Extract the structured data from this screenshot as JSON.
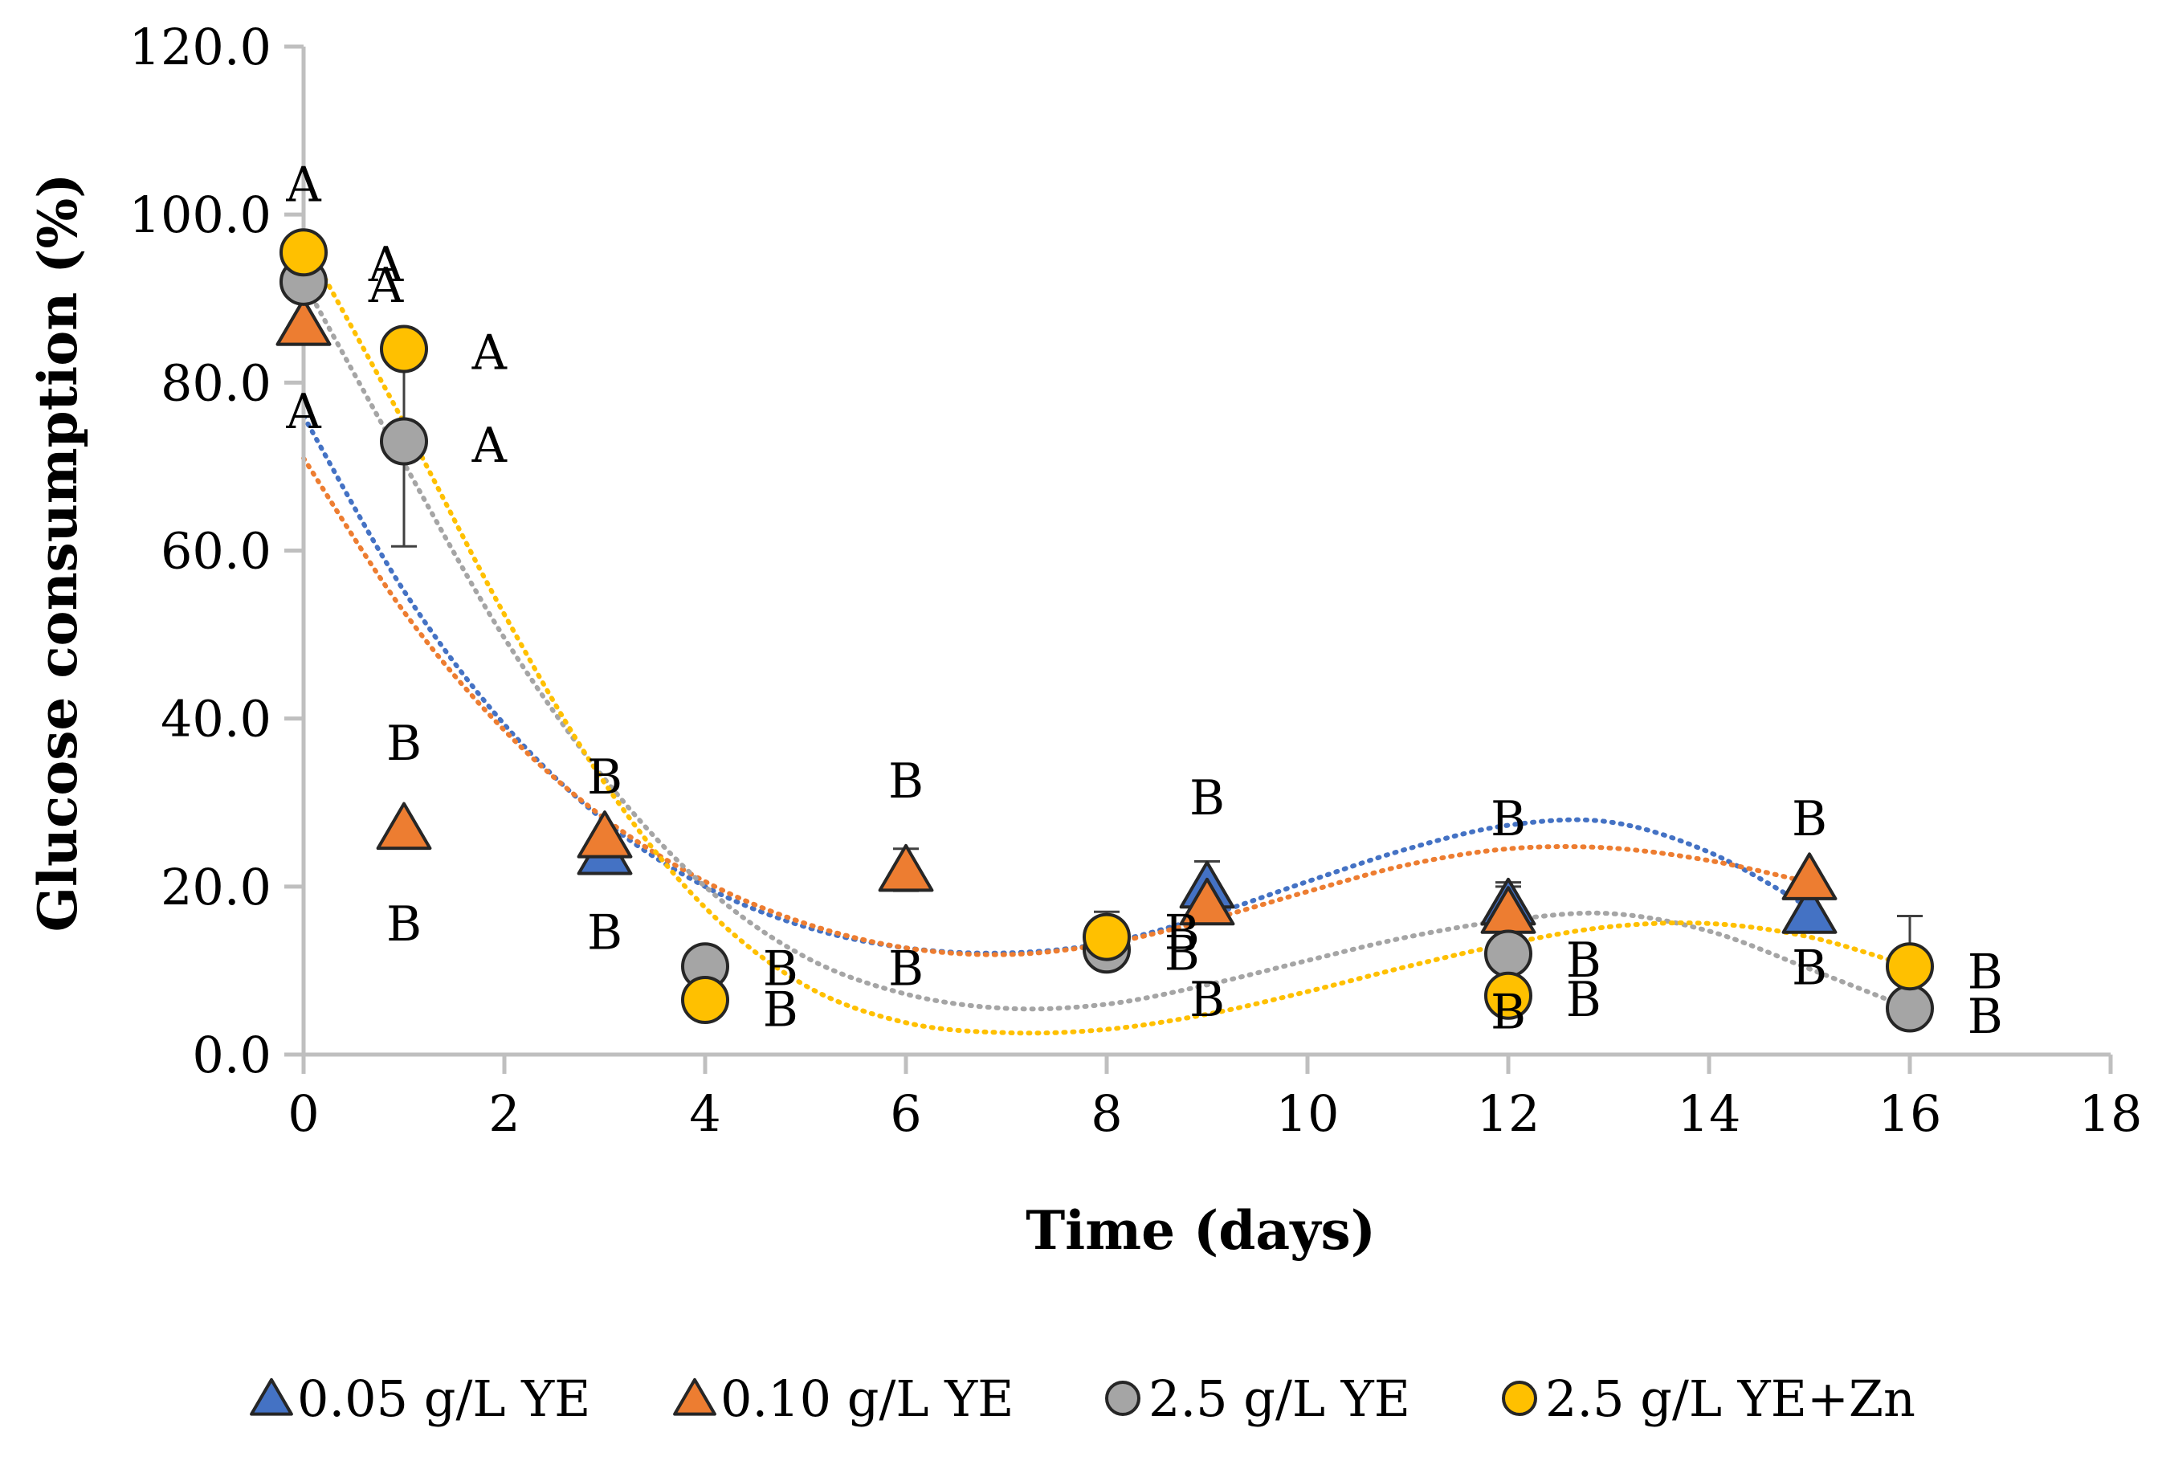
{
  "chart_data": {
    "type": "scatter",
    "title": "",
    "xlabel": "Time (days)",
    "ylabel": "Glucose consumption (%)",
    "xlim": [
      0,
      18
    ],
    "ylim": [
      0,
      120
    ],
    "xticks": [
      0,
      2,
      4,
      6,
      8,
      10,
      12,
      14,
      16,
      18
    ],
    "xtick_labels": [
      "0",
      "2",
      "4",
      "6",
      "8",
      "10",
      "12",
      "14",
      "16",
      "18"
    ],
    "yticks": [
      0,
      20,
      40,
      60,
      80,
      100,
      120
    ],
    "ytick_labels": [
      "0.0",
      "20.0",
      "40.0",
      "60.0",
      "80.0",
      "100.0",
      "120.0"
    ],
    "grid": false,
    "legend_position": "bottom",
    "series": [
      {
        "name": "0.05 g/L YE",
        "marker": "triangle",
        "color": "#4472C4",
        "trend_color": "#4472C4",
        "x": [
          0,
          3,
          9,
          12,
          15
        ],
        "y": [
          87,
          24,
          20,
          18,
          17
        ],
        "err": [
          0,
          0,
          3,
          2.5,
          0
        ],
        "trend": [
          [
            0,
            76
          ],
          [
            1,
            55.2
          ],
          [
            2,
            39.3
          ],
          [
            3,
            27.8
          ],
          [
            4,
            20
          ],
          [
            5,
            15.2
          ],
          [
            6,
            12.7
          ],
          [
            7,
            12.1
          ],
          [
            8,
            13.3
          ],
          [
            9,
            16.5
          ],
          [
            10,
            20.6
          ],
          [
            11,
            24.5
          ],
          [
            12,
            27.3
          ],
          [
            13,
            27.7
          ],
          [
            14,
            24.1
          ],
          [
            15,
            17.5
          ]
        ]
      },
      {
        "name": "0.10 g/L YE",
        "marker": "triangle",
        "color": "#ED7D31",
        "trend_color": "#ED7D31",
        "x": [
          0,
          1,
          3,
          6,
          9,
          12,
          15
        ],
        "y": [
          87,
          27,
          26,
          22,
          18,
          17,
          21
        ],
        "err": [
          0,
          0,
          0,
          2.5,
          0,
          3,
          0
        ],
        "trend": [
          [
            0,
            71
          ],
          [
            1,
            52.7
          ],
          [
            2,
            38.6
          ],
          [
            3,
            28.1
          ],
          [
            4,
            20.6
          ],
          [
            5,
            15.6
          ],
          [
            6,
            12.7
          ],
          [
            7,
            11.9
          ],
          [
            8,
            13.2
          ],
          [
            9,
            16
          ],
          [
            10,
            19.4
          ],
          [
            11,
            22.6
          ],
          [
            12,
            24.5
          ],
          [
            13,
            24.6
          ],
          [
            14,
            23.1
          ],
          [
            15,
            20.5
          ]
        ]
      },
      {
        "name": "2.5 g/L YE",
        "marker": "circle",
        "color": "#A5A5A5",
        "trend_color": "#A5A5A5",
        "x": [
          0,
          1,
          4,
          8,
          12,
          16
        ],
        "y": [
          92,
          73,
          10.5,
          12.5,
          12,
          5.5
        ],
        "err": [
          0,
          12.5,
          0,
          0,
          0,
          0
        ],
        "trend": [
          [
            0,
            92
          ],
          [
            1,
            70.4
          ],
          [
            2,
            49.6
          ],
          [
            3,
            32.8
          ],
          [
            4,
            20
          ],
          [
            5,
            11.6
          ],
          [
            6,
            7.2
          ],
          [
            7,
            5.5
          ],
          [
            8,
            6
          ],
          [
            9,
            8.3
          ],
          [
            10,
            11.2
          ],
          [
            11,
            14
          ],
          [
            12,
            16
          ],
          [
            13,
            16.8
          ],
          [
            14,
            14.7
          ],
          [
            15,
            10.2
          ],
          [
            16,
            5.5
          ]
        ]
      },
      {
        "name": "2.5 g/L YE+Zn",
        "marker": "circle",
        "color": "#FFC000",
        "trend_color": "#FFC000",
        "x": [
          0,
          1,
          4,
          8,
          12,
          16
        ],
        "y": [
          95.5,
          84,
          6.5,
          14,
          7,
          10.5
        ],
        "err": [
          0,
          0,
          0,
          3,
          0,
          6
        ],
        "trend": [
          [
            0,
            97
          ],
          [
            1,
            75.2
          ],
          [
            2,
            52.4
          ],
          [
            3,
            32.3
          ],
          [
            4,
            17.5
          ],
          [
            5,
            8.2
          ],
          [
            6,
            3.8
          ],
          [
            7,
            2.6
          ],
          [
            8,
            3
          ],
          [
            9,
            4.8
          ],
          [
            10,
            7.5
          ],
          [
            11,
            10.5
          ],
          [
            12,
            13.2
          ],
          [
            13,
            15.2
          ],
          [
            14,
            15.6
          ],
          [
            15,
            14
          ],
          [
            16,
            10.5
          ]
        ]
      }
    ],
    "annotations": [
      {
        "text": "A",
        "x": 0,
        "y": 103.5
      },
      {
        "text": "A",
        "x": 0,
        "y": 76.5
      },
      {
        "text": "A",
        "x": 0.82,
        "y": 94
      },
      {
        "text": "A",
        "x": 0.82,
        "y": 91.5
      },
      {
        "text": "A",
        "x": 1.85,
        "y": 83.5
      },
      {
        "text": "A",
        "x": 1.85,
        "y": 72.5
      },
      {
        "text": "B",
        "x": 1,
        "y": 37
      },
      {
        "text": "B",
        "x": 1,
        "y": 15.5
      },
      {
        "text": "B",
        "x": 3,
        "y": 33
      },
      {
        "text": "B",
        "x": 3,
        "y": 14.5
      },
      {
        "text": "B",
        "x": 4.75,
        "y": 10.2
      },
      {
        "text": "B",
        "x": 4.75,
        "y": 5.3
      },
      {
        "text": "B",
        "x": 6,
        "y": 32.5
      },
      {
        "text": "B",
        "x": 6,
        "y": 10.2
      },
      {
        "text": "B",
        "x": 8.75,
        "y": 14.5
      },
      {
        "text": "B",
        "x": 8.75,
        "y": 12
      },
      {
        "text": "B",
        "x": 9,
        "y": 30.5
      },
      {
        "text": "B",
        "x": 9,
        "y": 6.5
      },
      {
        "text": "B",
        "x": 12,
        "y": 28
      },
      {
        "text": "B",
        "x": 12,
        "y": 5
      },
      {
        "text": "B",
        "x": 12.75,
        "y": 11.2
      },
      {
        "text": "B",
        "x": 12.75,
        "y": 6.5
      },
      {
        "text": "B",
        "x": 15,
        "y": 28
      },
      {
        "text": "B",
        "x": 15,
        "y": 10.3
      },
      {
        "text": "B",
        "x": 16.75,
        "y": 9.8
      },
      {
        "text": "B",
        "x": 16.75,
        "y": 4.5
      }
    ]
  }
}
